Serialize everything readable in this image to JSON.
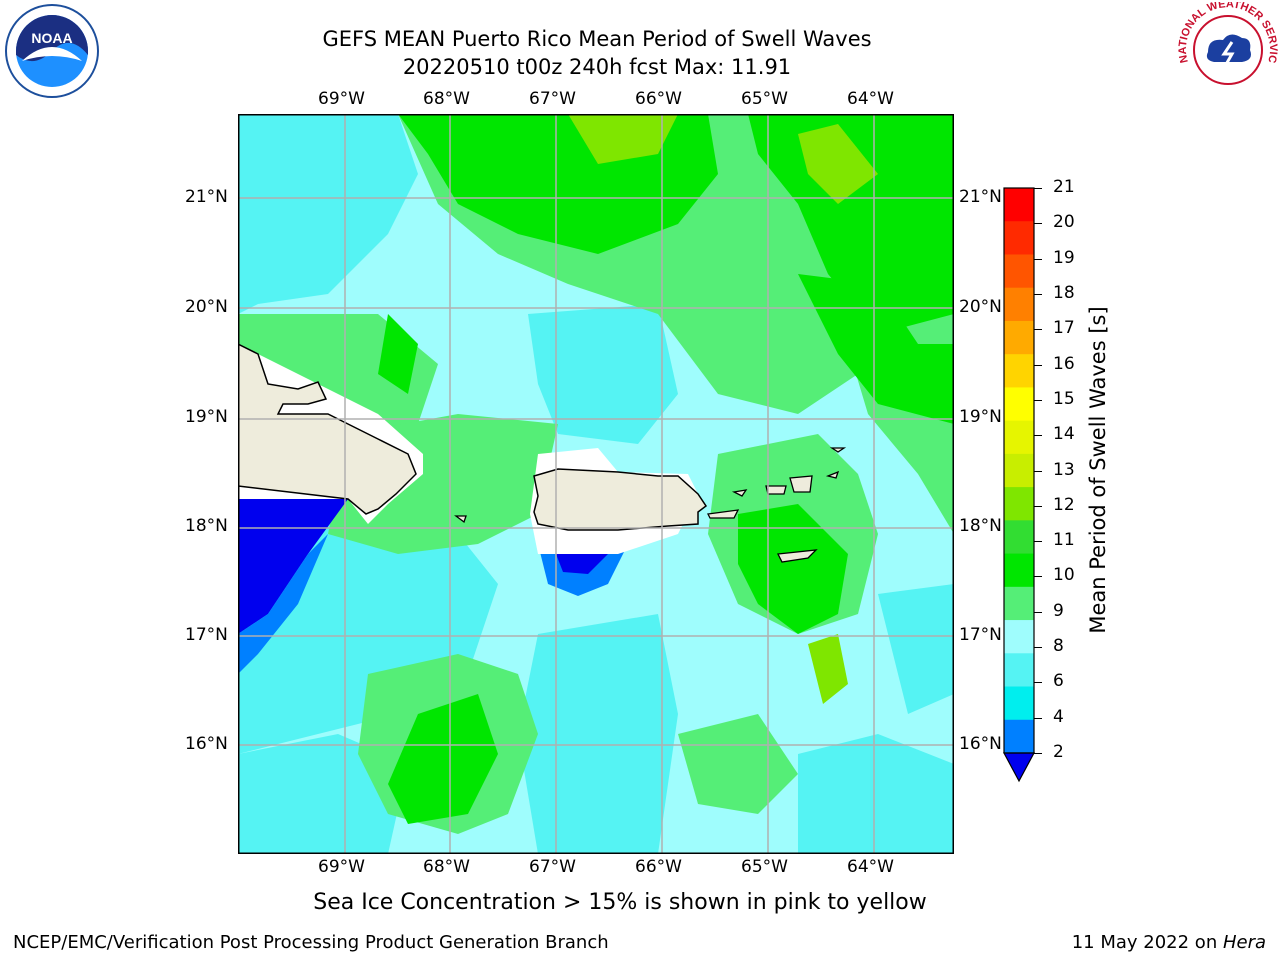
{
  "title": {
    "line1": "GEFS MEAN Puerto Rico Mean Period of Swell Waves",
    "line2": "20220510 t00z 240h fcst   Max: 11.91"
  },
  "map": {
    "lon_labels": [
      "69°W",
      "68°W",
      "67°W",
      "66°W",
      "65°W",
      "64°W"
    ],
    "lat_labels": [
      "21°N",
      "20°N",
      "19°N",
      "18°N",
      "17°N",
      "16°N"
    ],
    "land_color": "#eeecdc",
    "grid_color": "#b0b0b0"
  },
  "colorbar": {
    "title": "Mean Period of Swell Waves [s]",
    "ticks": [
      "21",
      "20",
      "19",
      "18",
      "17",
      "16",
      "15",
      "14",
      "13",
      "12",
      "11",
      "10",
      "9",
      "8",
      "6",
      "4",
      "2"
    ],
    "colors": [
      "#ff0000",
      "#ff2a00",
      "#ff5500",
      "#ff8000",
      "#ffaa00",
      "#ffd400",
      "#ffff00",
      "#e6f500",
      "#c8ee00",
      "#7fe600",
      "#32dd32",
      "#00e600",
      "#55ee77",
      "#9ffdfd",
      "#55f3f3",
      "#00eeee",
      "#0080ff",
      "#0000ee"
    ]
  },
  "note": "Sea Ice Concentration > 15% is shown in pink to yellow",
  "footer": {
    "left": "NCEP/EMC/Verification Post Processing Product Generation Branch",
    "right_prefix": "11 May 2022 on ",
    "right_host": "Hera"
  },
  "logos": {
    "noaa_text": "NOAA",
    "nws_text": "NATIONAL WEATHER SERVICE"
  }
}
